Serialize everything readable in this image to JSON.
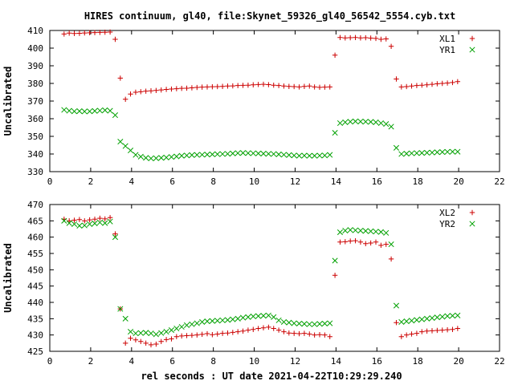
{
  "title": "HIRES continuum, gl40, file:Skynet_59326_gl40_56542_5554.cyb.txt",
  "xlabel": "rel seconds : UT date 2021-04-22T10:29:29.240",
  "colors": {
    "red": "#cc0000",
    "green": "#00a000",
    "axis": "#000000",
    "overlap": "#b07000"
  },
  "chart_data": [
    {
      "type": "scatter",
      "ylabel": "Uncalibrated",
      "xlim": [
        0,
        22
      ],
      "ylim": [
        330,
        410
      ],
      "xticks": [
        0,
        2,
        4,
        6,
        8,
        10,
        12,
        14,
        16,
        18,
        20,
        22
      ],
      "yticks": [
        330,
        340,
        350,
        360,
        370,
        380,
        390,
        400,
        410
      ],
      "legend_position": "top-right",
      "series": [
        {
          "name": "XL1",
          "marker": "plus",
          "color": "#cc0000",
          "x": [
            0.7,
            0.95,
            1.2,
            1.45,
            1.7,
            1.95,
            2.2,
            2.45,
            2.7,
            2.95,
            3.2,
            3.45,
            3.7,
            3.95,
            4.2,
            4.45,
            4.7,
            4.95,
            5.2,
            5.45,
            5.7,
            5.95,
            6.2,
            6.45,
            6.7,
            6.95,
            7.2,
            7.45,
            7.7,
            7.95,
            8.2,
            8.45,
            8.7,
            8.95,
            9.2,
            9.45,
            9.7,
            9.95,
            10.2,
            10.45,
            10.7,
            10.95,
            11.2,
            11.45,
            11.7,
            11.95,
            12.2,
            12.45,
            12.7,
            12.95,
            13.2,
            13.45,
            13.7,
            13.95,
            14.2,
            14.45,
            14.7,
            14.95,
            15.2,
            15.45,
            15.7,
            15.95,
            16.2,
            16.45,
            16.7,
            16.95,
            17.2,
            17.45,
            17.7,
            17.95,
            18.2,
            18.45,
            18.7,
            18.95,
            19.2,
            19.45,
            19.7,
            19.95
          ],
          "y": [
            408,
            408.5,
            408.3,
            408.4,
            408.6,
            408.7,
            408.8,
            408.9,
            409,
            409.1,
            405,
            383,
            371,
            374,
            375,
            375.3,
            375.6,
            375.8,
            376,
            376.3,
            376.6,
            376.8,
            377,
            377.2,
            377.3,
            377.5,
            377.7,
            377.9,
            378,
            378.1,
            378.2,
            378.3,
            378.5,
            378.6,
            378.8,
            378.9,
            379,
            379.2,
            379.4,
            379.5,
            379.3,
            379,
            378.8,
            378.5,
            378.3,
            378.2,
            378,
            378.3,
            378.5,
            378,
            377.8,
            377.9,
            378,
            396,
            406,
            405.8,
            405.9,
            406,
            405.8,
            405.9,
            405.7,
            405.5,
            405,
            405.2,
            401,
            382.5,
            378,
            378.2,
            378.5,
            378.8,
            379,
            379.2,
            379.5,
            379.8,
            380,
            380.2,
            380.5,
            381
          ]
        },
        {
          "name": "YR1",
          "marker": "cross",
          "color": "#00a000",
          "x": [
            0.7,
            0.95,
            1.2,
            1.45,
            1.7,
            1.95,
            2.2,
            2.45,
            2.7,
            2.95,
            3.2,
            3.45,
            3.7,
            3.95,
            4.2,
            4.45,
            4.7,
            4.95,
            5.2,
            5.45,
            5.7,
            5.95,
            6.2,
            6.45,
            6.7,
            6.95,
            7.2,
            7.45,
            7.7,
            7.95,
            8.2,
            8.45,
            8.7,
            8.95,
            9.2,
            9.45,
            9.7,
            9.95,
            10.2,
            10.45,
            10.7,
            10.95,
            11.2,
            11.45,
            11.7,
            11.95,
            12.2,
            12.45,
            12.7,
            12.95,
            13.2,
            13.45,
            13.7,
            13.95,
            14.2,
            14.45,
            14.7,
            14.95,
            15.2,
            15.45,
            15.7,
            15.95,
            16.2,
            16.45,
            16.7,
            16.95,
            17.2,
            17.45,
            17.7,
            17.95,
            18.2,
            18.45,
            18.7,
            18.95,
            19.2,
            19.45,
            19.7,
            19.95
          ],
          "y": [
            365,
            364.5,
            364.2,
            364.3,
            364.1,
            364.2,
            364.4,
            364.6,
            364.8,
            364.5,
            362,
            347,
            344.5,
            342,
            339.5,
            338.5,
            337.8,
            337.5,
            337.6,
            337.8,
            338,
            338.3,
            338.6,
            339,
            339.2,
            339.4,
            339.5,
            339.6,
            339.7,
            339.8,
            339.9,
            340,
            340.1,
            340.3,
            340.5,
            340.6,
            340.5,
            340.4,
            340.3,
            340.2,
            340.1,
            340,
            339.8,
            339.6,
            339.4,
            339.2,
            339,
            339.1,
            339,
            339,
            339.1,
            339.2,
            339.5,
            352,
            357.5,
            358,
            358.3,
            358.5,
            358.4,
            358.3,
            358.2,
            358,
            357.5,
            357,
            355.5,
            343.5,
            340,
            340.2,
            340.4,
            340.5,
            340.6,
            340.7,
            340.8,
            341,
            341.1,
            341.2,
            341.3,
            341.3
          ]
        }
      ]
    },
    {
      "type": "scatter",
      "ylabel": "Uncalibrated",
      "xlim": [
        0,
        22
      ],
      "ylim": [
        425,
        470
      ],
      "xticks": [
        0,
        2,
        4,
        6,
        8,
        10,
        12,
        14,
        16,
        18,
        20,
        22
      ],
      "yticks": [
        425,
        430,
        435,
        440,
        445,
        450,
        455,
        460,
        465,
        470
      ],
      "legend_position": "top-right",
      "series": [
        {
          "name": "XL2",
          "marker": "plus",
          "color": "#cc0000",
          "x": [
            0.7,
            0.95,
            1.2,
            1.45,
            1.7,
            1.95,
            2.2,
            2.45,
            2.7,
            2.95,
            3.2,
            3.45,
            3.7,
            3.95,
            4.2,
            4.45,
            4.7,
            4.95,
            5.2,
            5.45,
            5.7,
            5.95,
            6.2,
            6.45,
            6.7,
            6.95,
            7.2,
            7.45,
            7.7,
            7.95,
            8.2,
            8.45,
            8.7,
            8.95,
            9.2,
            9.45,
            9.7,
            9.95,
            10.2,
            10.45,
            10.7,
            10.95,
            11.2,
            11.45,
            11.7,
            11.95,
            12.2,
            12.45,
            12.7,
            12.95,
            13.2,
            13.45,
            13.7,
            13.95,
            14.2,
            14.45,
            14.7,
            14.95,
            15.2,
            15.45,
            15.7,
            15.95,
            16.2,
            16.45,
            16.7,
            16.95,
            17.2,
            17.45,
            17.7,
            17.95,
            18.2,
            18.45,
            18.7,
            18.95,
            19.2,
            19.45,
            19.7,
            19.95
          ],
          "y": [
            465.5,
            465,
            465.2,
            465.4,
            465,
            465.3,
            465.5,
            465.8,
            465.6,
            466,
            461,
            438,
            427.5,
            429,
            428.5,
            428,
            427.5,
            427,
            427.2,
            428,
            428.6,
            428.8,
            429.5,
            429.7,
            429.8,
            429.9,
            430,
            430.2,
            430.4,
            430.1,
            430.3,
            430.5,
            430.6,
            430.8,
            431,
            431.2,
            431.5,
            431.7,
            432,
            432.2,
            432.4,
            432,
            431.5,
            431,
            430.6,
            430.5,
            430.4,
            430.5,
            430.3,
            430,
            430.1,
            430,
            429.5,
            448.3,
            458.5,
            458.6,
            458.8,
            458.9,
            458.5,
            458,
            458.2,
            458.5,
            457.5,
            457.8,
            453.3,
            433.8,
            429.5,
            430,
            430.3,
            430.5,
            431,
            431.2,
            431.3,
            431.4,
            431.5,
            431.6,
            431.7,
            432
          ]
        },
        {
          "name": "YR2",
          "marker": "cross",
          "color": "#00a000",
          "x": [
            0.7,
            0.95,
            1.2,
            1.45,
            1.7,
            1.95,
            2.2,
            2.45,
            2.7,
            2.95,
            3.2,
            3.45,
            3.7,
            3.95,
            4.2,
            4.45,
            4.7,
            4.95,
            5.2,
            5.45,
            5.7,
            5.95,
            6.2,
            6.45,
            6.7,
            6.95,
            7.2,
            7.45,
            7.7,
            7.95,
            8.2,
            8.45,
            8.7,
            8.95,
            9.2,
            9.45,
            9.7,
            9.95,
            10.2,
            10.45,
            10.7,
            10.95,
            11.2,
            11.45,
            11.7,
            11.95,
            12.2,
            12.45,
            12.7,
            12.95,
            13.2,
            13.45,
            13.7,
            13.95,
            14.2,
            14.45,
            14.7,
            14.95,
            15.2,
            15.45,
            15.7,
            15.95,
            16.2,
            16.45,
            16.7,
            16.95,
            17.2,
            17.45,
            17.7,
            17.95,
            18.2,
            18.45,
            18.7,
            18.95,
            19.2,
            19.45,
            19.7,
            19.95
          ],
          "y": [
            465,
            464.3,
            464,
            463.5,
            463.6,
            464,
            464.2,
            464.5,
            464.3,
            464.8,
            460,
            438,
            435,
            431,
            430.5,
            430.6,
            430.7,
            430.5,
            430.2,
            430.6,
            431,
            431.5,
            432,
            432.5,
            433,
            433.3,
            433.6,
            434,
            434.2,
            434.3,
            434.4,
            434.5,
            434.6,
            434.8,
            435,
            435.3,
            435.5,
            435.7,
            435.8,
            435.9,
            436,
            435.5,
            434.5,
            434,
            433.8,
            433.6,
            433.5,
            433.4,
            433.3,
            433.3,
            433.4,
            433.5,
            433.6,
            452.8,
            461.5,
            462,
            462.2,
            462.1,
            462,
            461.9,
            461.8,
            461.7,
            461.6,
            461.3,
            457.8,
            439,
            434,
            434.2,
            434.4,
            434.6,
            434.8,
            435,
            435.2,
            435.4,
            435.6,
            435.8,
            435.9,
            436
          ]
        }
      ]
    }
  ]
}
